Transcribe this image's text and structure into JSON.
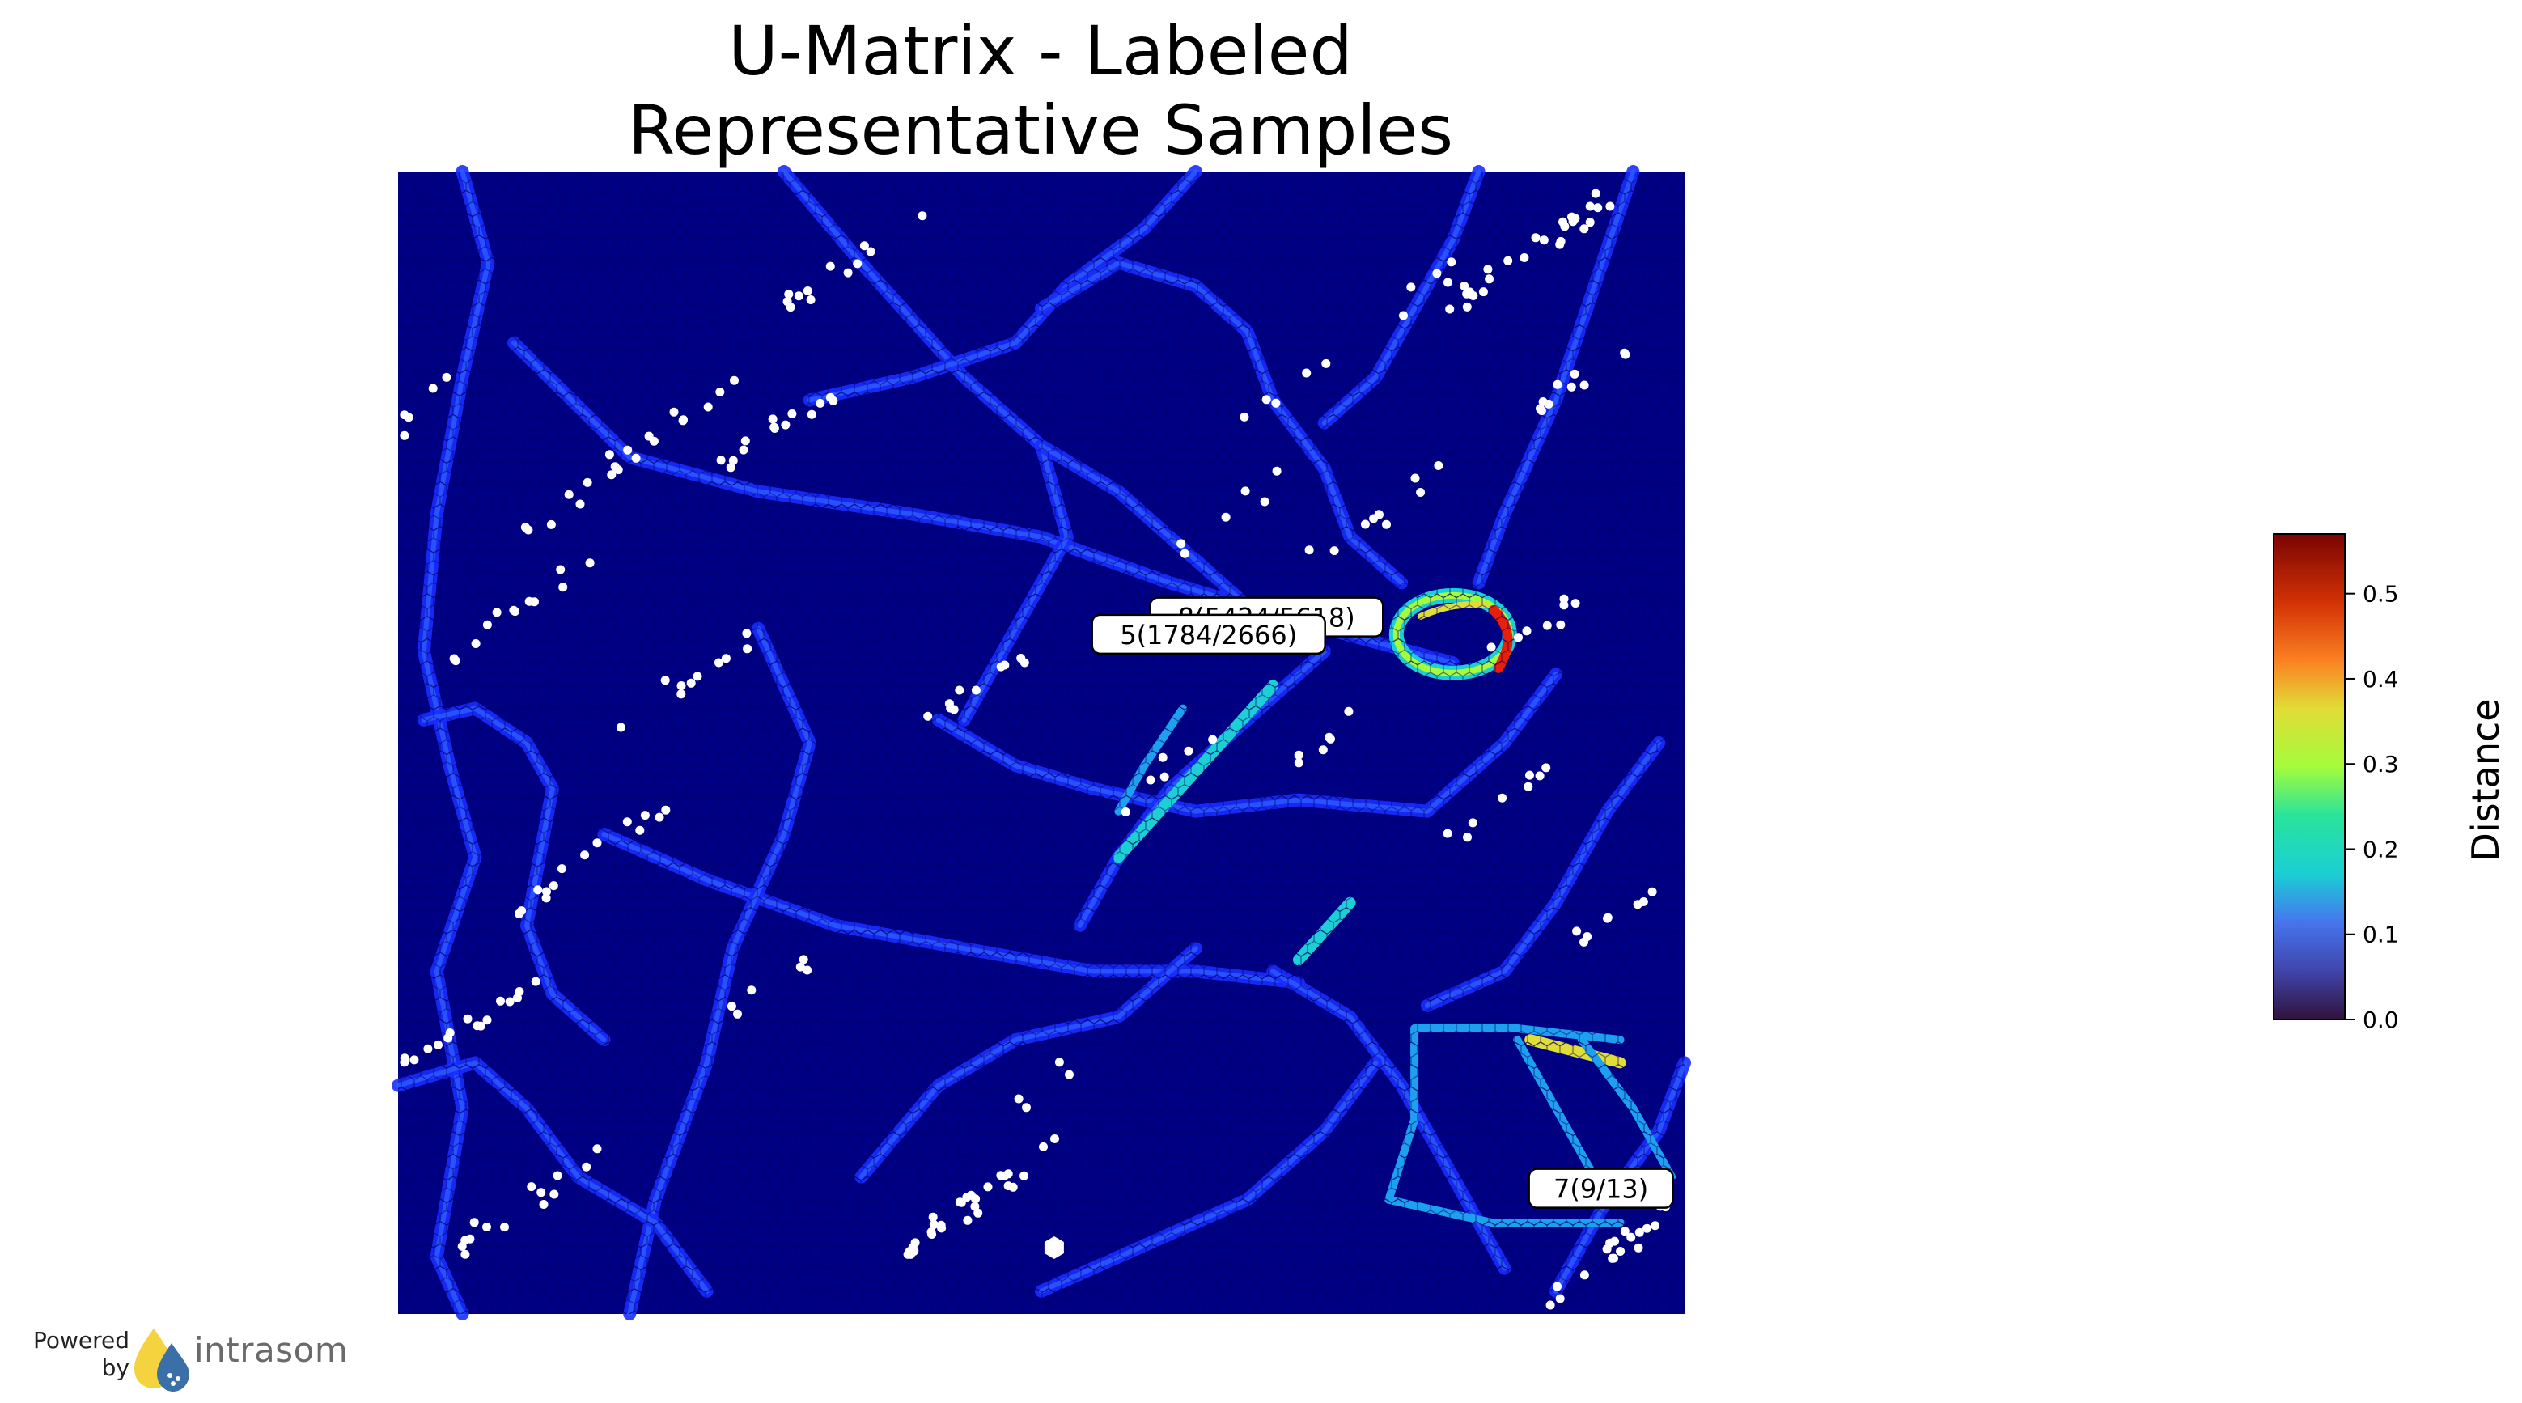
{
  "chart_data": {
    "type": "heatmap",
    "title": "U-Matrix - Labeled\nRepresentative Samples",
    "title_lines": [
      "U-Matrix - Labeled",
      "Representative Samples"
    ],
    "grid": "hexagonal",
    "colormap": "jet-like (dark blue → cyan → green → yellow → red → dark red)",
    "colorbar": {
      "label": "Distance",
      "range": [
        0.0,
        0.57
      ],
      "ticks": [
        0.0,
        0.1,
        0.2,
        0.3,
        0.4,
        0.5
      ],
      "tick_labels": [
        "0.0",
        "0.1",
        "0.2",
        "0.3",
        "0.4",
        "0.5"
      ]
    },
    "labels": [
      {
        "text": "8(5424/5618)",
        "x": 0.675,
        "y": 0.61
      },
      {
        "text": "5(1784/2666)",
        "x": 0.63,
        "y": 0.595
      },
      {
        "text": "7(9/13)",
        "x": 0.935,
        "y": 0.11
      }
    ],
    "features": {
      "high_distance_ring": {
        "x": 0.82,
        "y": 0.595,
        "peak": 0.52
      },
      "medium_distance_segments": [
        {
          "from": [
            0.88,
            0.24
          ],
          "to": [
            0.95,
            0.22
          ],
          "value": 0.32
        },
        {
          "from": [
            0.56,
            0.4
          ],
          "to": [
            0.68,
            0.55
          ],
          "value": 0.18
        },
        {
          "from": [
            0.7,
            0.31
          ],
          "to": [
            0.74,
            0.36
          ],
          "value": 0.15
        }
      ]
    },
    "axes_visible": false
  },
  "colors": {
    "background_low": "#00007f",
    "ridge": "#1e3cff",
    "sample_marker": "#ffffff",
    "high": "#e8200a"
  },
  "footer": {
    "powered_by": [
      "Powered",
      "by"
    ],
    "brand": "intrasom",
    "logo_icon": "intrasom-drops-logo-icon"
  }
}
